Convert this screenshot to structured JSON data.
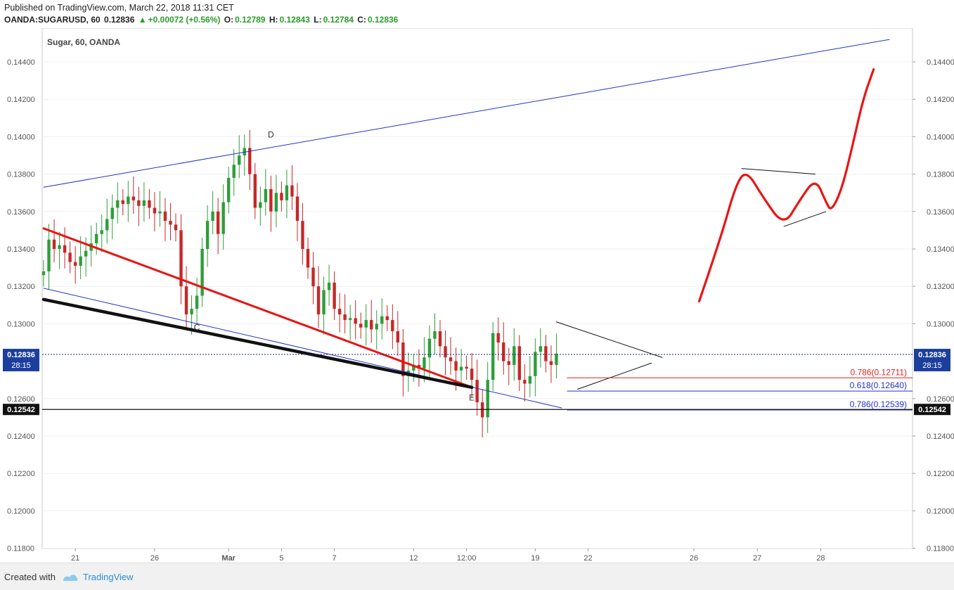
{
  "header": {
    "published": "Published on TradingView.com, March 22, 2018 11:31 CET",
    "symbol": "OANDA:SUGARUSD, 60",
    "last": "0.12836",
    "change": "+0.00072 (+0.56%)",
    "o_label": "O:",
    "o_value": "0.12789",
    "h_label": "H:",
    "h_value": "0.12843",
    "l_label": "L:",
    "l_value": "0.12784",
    "c_label": "C:",
    "c_value": "0.12836"
  },
  "footer": {
    "created_with": "Created with",
    "brand": "TradingView"
  },
  "colors": {
    "up": "#2e9e3a",
    "down": "#c62828",
    "trend_blue": "#2233cc",
    "red_line": "#e81515",
    "black_line": "#111111",
    "grid": "#f0f0f0"
  },
  "chart_data": {
    "type": "candlestick",
    "title": "Sugar, 60, OANDA",
    "ylim": [
      0.118,
      0.145
    ],
    "y_ticks": [
      "0.14400",
      "0.14200",
      "0.14000",
      "0.13800",
      "0.13600",
      "0.13400",
      "0.13200",
      "0.13000",
      "0.12600",
      "0.12400",
      "0.12200",
      "0.12000",
      "0.11800"
    ],
    "x_ticks": [
      {
        "label": "21",
        "bar": 6
      },
      {
        "label": "26",
        "bar": 21
      },
      {
        "label": "Mar",
        "bar": 35
      },
      {
        "label": "5",
        "bar": 45
      },
      {
        "label": "7",
        "bar": 55
      },
      {
        "label": "12",
        "bar": 70
      },
      {
        "label": "12:00",
        "bar": 80
      },
      {
        "label": "19",
        "bar": 93
      },
      {
        "label": "22",
        "bar": 103
      }
    ],
    "future_x_ticks": [
      {
        "label": "26",
        "bar": 123
      },
      {
        "label": "27",
        "bar": 135
      },
      {
        "label": "28",
        "bar": 147
      }
    ],
    "closes": [
      0.1328,
      0.1345,
      0.134,
      0.1342,
      0.1338,
      0.1333,
      0.1331,
      0.1336,
      0.1339,
      0.1343,
      0.1348,
      0.135,
      0.1356,
      0.1362,
      0.1366,
      0.1364,
      0.1368,
      0.1366,
      0.1363,
      0.1366,
      0.1362,
      0.1359,
      0.136,
      0.1355,
      0.1353,
      0.135,
      0.132,
      0.1305,
      0.1308,
      0.1315,
      0.134,
      0.1355,
      0.136,
      0.1348,
      0.1365,
      0.1378,
      0.1385,
      0.139,
      0.1394,
      0.138,
      0.1362,
      0.1365,
      0.1372,
      0.136,
      0.137,
      0.1366,
      0.1374,
      0.1368,
      0.1355,
      0.134,
      0.133,
      0.132,
      0.1305,
      0.1318,
      0.1322,
      0.1308,
      0.1305,
      0.1302,
      0.1303,
      0.13,
      0.1298,
      0.1302,
      0.1297,
      0.13,
      0.1304,
      0.1302,
      0.1296,
      0.129,
      0.1272,
      0.1275,
      0.1278,
      0.1276,
      0.1282,
      0.1292,
      0.1296,
      0.1288,
      0.1282,
      0.128,
      0.1275,
      0.1277,
      0.1276,
      0.127,
      0.1258,
      0.125,
      0.127,
      0.1295,
      0.129,
      0.128,
      0.1278,
      0.1288,
      0.127,
      0.1268,
      0.1272,
      0.1285,
      0.1288,
      0.128,
      0.1278,
      0.1284
    ],
    "open_first": 0.1326,
    "current_price": {
      "value": 0.12836,
      "label": "0.12836",
      "countdown": "28:15"
    },
    "support_line": {
      "value": 0.12542,
      "label": "0.12542"
    },
    "fib_levels": [
      {
        "label": "0.786(0.12711)",
        "value": 0.12711,
        "color": "#e02020"
      },
      {
        "label": "0.618(0.12640)",
        "value": 0.1264,
        "color": "#2233cc"
      },
      {
        "label": "0.786(0.12539)",
        "value": 0.12539,
        "color": "#2233cc"
      }
    ],
    "wave_labels": [
      {
        "label": "C",
        "bar": 29,
        "value": 0.12965
      },
      {
        "label": "D",
        "bar": 43,
        "value": 0.13995
      },
      {
        "label": "E",
        "bar": 81,
        "value": 0.1259
      }
    ],
    "trendlines": [
      {
        "id": "upper-channel",
        "from": [
          0,
          0.1373
        ],
        "to": [
          160,
          0.1452
        ],
        "color": "#2233cc",
        "width": 1
      },
      {
        "id": "lower-channel",
        "from": [
          0,
          0.1319
        ],
        "to": [
          98,
          0.1255
        ],
        "color": "#2233cc",
        "width": 1
      },
      {
        "id": "red-resistance",
        "from": [
          0,
          0.1351
        ],
        "to": [
          81,
          0.1266
        ],
        "color": "#e81515",
        "width": 3
      },
      {
        "id": "black-support",
        "from": [
          0,
          0.1313
        ],
        "to": [
          81,
          0.1266
        ],
        "color": "#111111",
        "width": 4.5
      },
      {
        "id": "triangle-top",
        "from": [
          97,
          0.1301
        ],
        "to": [
          117,
          0.1282
        ],
        "color": "#111111",
        "width": 1
      },
      {
        "id": "triangle-bottom",
        "from": [
          101,
          0.1265
        ],
        "to": [
          115,
          0.1279
        ],
        "color": "#111111",
        "width": 1
      }
    ],
    "projection": {
      "path": [
        [
          124,
          0.1312
        ],
        [
          128,
          0.1345
        ],
        [
          131,
          0.1375
        ],
        [
          133,
          0.1382
        ],
        [
          136,
          0.1368
        ],
        [
          140,
          0.1352
        ],
        [
          143,
          0.1366
        ],
        [
          146,
          0.1378
        ],
        [
          148,
          0.1365
        ],
        [
          149,
          0.136
        ],
        [
          151,
          0.1372
        ],
        [
          153,
          0.1395
        ],
        [
          155,
          0.142
        ],
        [
          157,
          0.1436
        ]
      ],
      "flag_top": [
        [
          132,
          0.1383
        ],
        [
          146,
          0.138
        ]
      ],
      "flag_bottom": [
        [
          140,
          0.1352
        ],
        [
          148,
          0.136
        ]
      ],
      "color": "#e81515"
    }
  }
}
